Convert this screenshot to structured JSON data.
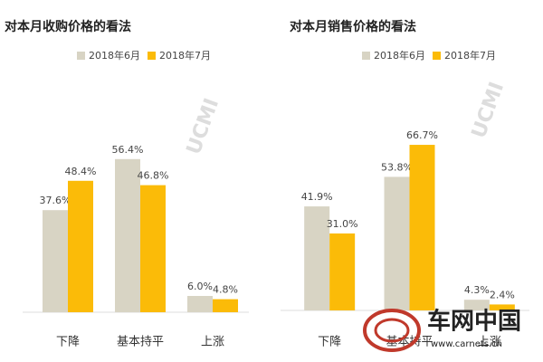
{
  "chart_data": [
    {
      "type": "bar",
      "title": "对本月收购价格的看法",
      "annotations": [
        "UCMI"
      ],
      "categories": [
        "下降",
        "基本持平",
        "上涨"
      ],
      "series": [
        {
          "name": "2018年6月",
          "color": "#d8d4c4",
          "values": [
            37.6,
            56.4,
            6.0
          ],
          "value_labels": [
            "37.6%",
            "56.4%",
            "6.0%"
          ]
        },
        {
          "name": "2018年7月",
          "color": "#fbbb08",
          "values": [
            48.4,
            46.8,
            4.8
          ],
          "value_labels": [
            "48.4%",
            "46.8%",
            "4.8%"
          ]
        }
      ],
      "ylim": [
        0,
        70
      ]
    },
    {
      "type": "bar",
      "title": "对本月销售价格的看法",
      "annotations": [
        "UCMI"
      ],
      "categories": [
        "下降",
        "基本持平",
        "上涨"
      ],
      "series": [
        {
          "name": "2018年6月",
          "color": "#d8d4c4",
          "values": [
            41.9,
            53.8,
            4.3
          ],
          "value_labels": [
            "41.9%",
            "53.8%",
            "4.3%"
          ]
        },
        {
          "name": "2018年7月",
          "color": "#fbbb08",
          "values": [
            31.0,
            66.7,
            2.4
          ],
          "value_labels": [
            "31.0%",
            "66.7%",
            "2.4%"
          ]
        }
      ],
      "ylim": [
        0,
        70
      ]
    }
  ],
  "watermark": {
    "logo": "车网中国",
    "url": "www.carnets.cn"
  }
}
